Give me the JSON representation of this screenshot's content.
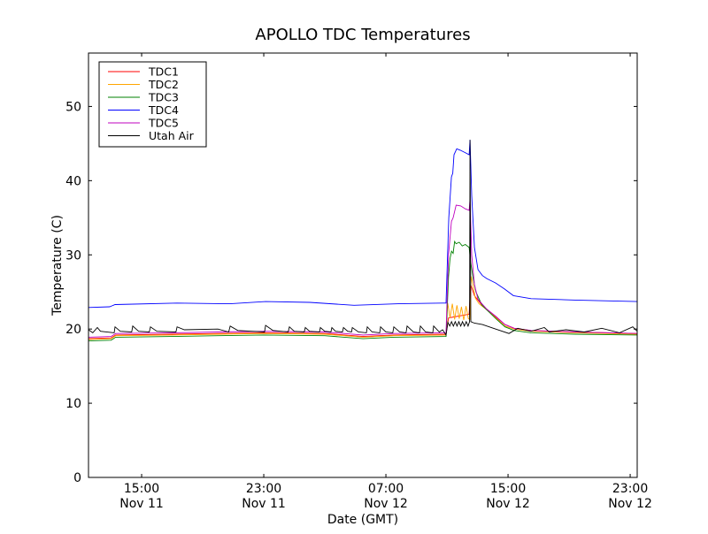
{
  "chart_data": {
    "type": "line",
    "title": "APOLLO TDC Temperatures",
    "xlabel": "Date (GMT)",
    "ylabel": "Temperature (C)",
    "x_units": "hours since Nov 11 00:00 GMT",
    "xlim": [
      11.52,
      47.46
    ],
    "ylim": [
      0,
      57.2
    ],
    "yticks": [
      0,
      10,
      20,
      30,
      40,
      50
    ],
    "xticks": [
      {
        "value": 15,
        "time": "15:00",
        "date": "Nov 11"
      },
      {
        "value": 23,
        "time": "23:00",
        "date": "Nov 11"
      },
      {
        "value": 31,
        "time": "07:00",
        "date": "Nov 12"
      },
      {
        "value": 39,
        "time": "15:00",
        "date": "Nov 12"
      },
      {
        "value": 47,
        "time": "23:00",
        "date": "Nov 12"
      }
    ],
    "legend_position": "top-left",
    "series": [
      {
        "name": "TDC1",
        "color": "#ff0000",
        "points": [
          [
            11.52,
            18.7
          ],
          [
            13.0,
            18.8
          ],
          [
            13.3,
            19.2
          ],
          [
            17,
            19.3
          ],
          [
            20,
            19.4
          ],
          [
            23,
            19.5
          ],
          [
            27,
            19.4
          ],
          [
            29.5,
            19.0
          ],
          [
            31.5,
            19.2
          ],
          [
            34.94,
            19.3
          ],
          [
            35.1,
            21.5
          ],
          [
            36.45,
            22
          ],
          [
            36.55,
            26
          ],
          [
            36.8,
            24.5
          ],
          [
            37.3,
            23.2
          ],
          [
            37.6,
            22.6
          ],
          [
            38.2,
            21.6
          ],
          [
            38.8,
            20.6
          ],
          [
            39.4,
            20.1
          ],
          [
            40.5,
            19.8
          ],
          [
            43.4,
            19.6
          ],
          [
            47.46,
            19.4
          ]
        ]
      },
      {
        "name": "TDC2",
        "color": "#ffa500",
        "points": [
          [
            11.52,
            18.6
          ],
          [
            13.0,
            18.7
          ],
          [
            13.3,
            19.1
          ],
          [
            17,
            19.2
          ],
          [
            20,
            19.3
          ],
          [
            23,
            19.4
          ],
          [
            27,
            19.3
          ],
          [
            29.5,
            18.9
          ],
          [
            31.5,
            19.1
          ],
          [
            34.94,
            19.2
          ],
          [
            35.05,
            23.5
          ],
          [
            35.2,
            21.5
          ],
          [
            35.35,
            23.4
          ],
          [
            35.5,
            21.3
          ],
          [
            35.65,
            23.2
          ],
          [
            35.8,
            21.4
          ],
          [
            35.95,
            23
          ],
          [
            36.1,
            21.2
          ],
          [
            36.25,
            23.1
          ],
          [
            36.4,
            21.4
          ],
          [
            36.5,
            21.3
          ],
          [
            36.58,
            27.1
          ],
          [
            36.7,
            26
          ],
          [
            36.85,
            24.2
          ],
          [
            37.1,
            23.4
          ],
          [
            37.6,
            22.6
          ],
          [
            38.2,
            21.5
          ],
          [
            38.8,
            20.4
          ],
          [
            39.4,
            20.0
          ],
          [
            40.5,
            19.7
          ],
          [
            43.4,
            19.5
          ],
          [
            47.46,
            19.3
          ]
        ]
      },
      {
        "name": "TDC3",
        "color": "#008000",
        "points": [
          [
            11.52,
            18.4
          ],
          [
            13.0,
            18.5
          ],
          [
            13.3,
            18.9
          ],
          [
            17,
            19.0
          ],
          [
            20,
            19.1
          ],
          [
            23,
            19.2
          ],
          [
            27,
            19.1
          ],
          [
            29.5,
            18.7
          ],
          [
            31.5,
            18.9
          ],
          [
            34.94,
            19.0
          ],
          [
            35.1,
            27
          ],
          [
            35.2,
            29.5
          ],
          [
            35.3,
            30.5
          ],
          [
            35.4,
            30.2
          ],
          [
            35.5,
            31.8
          ],
          [
            35.6,
            31.5
          ],
          [
            35.8,
            31.7
          ],
          [
            36.0,
            31.2
          ],
          [
            36.2,
            31.4
          ],
          [
            36.45,
            31
          ],
          [
            36.55,
            29
          ],
          [
            36.7,
            27
          ],
          [
            36.9,
            25
          ],
          [
            37.3,
            23.2
          ],
          [
            37.6,
            22.6
          ],
          [
            38.2,
            21.4
          ],
          [
            38.8,
            20.3
          ],
          [
            39.4,
            19.8
          ],
          [
            40.5,
            19.5
          ],
          [
            43.4,
            19.3
          ],
          [
            47.46,
            19.2
          ]
        ]
      },
      {
        "name": "TDC4",
        "color": "#0000ff",
        "points": [
          [
            11.52,
            22.9
          ],
          [
            12.9,
            23.0
          ],
          [
            13.26,
            23.3
          ],
          [
            17.32,
            23.5
          ],
          [
            20.8,
            23.4
          ],
          [
            23.12,
            23.7
          ],
          [
            26.01,
            23.6
          ],
          [
            28.91,
            23.2
          ],
          [
            31.81,
            23.4
          ],
          [
            34.71,
            23.5
          ],
          [
            34.94,
            23.5
          ],
          [
            35.12,
            35
          ],
          [
            35.29,
            40.5
          ],
          [
            35.38,
            41
          ],
          [
            35.46,
            43.5
          ],
          [
            35.64,
            44.3
          ],
          [
            35.87,
            44.1
          ],
          [
            36.16,
            43.8
          ],
          [
            36.45,
            43.5
          ],
          [
            36.51,
            45.5
          ],
          [
            36.62,
            38
          ],
          [
            36.8,
            31
          ],
          [
            37.03,
            28
          ],
          [
            37.32,
            27.2
          ],
          [
            37.61,
            26.8
          ],
          [
            38.19,
            26.2
          ],
          [
            38.77,
            25.4
          ],
          [
            39.35,
            24.5
          ],
          [
            40.51,
            24.1
          ],
          [
            43.41,
            23.9
          ],
          [
            47.46,
            23.7
          ]
        ]
      },
      {
        "name": "TDC5",
        "color": "#bf00bf",
        "points": [
          [
            11.52,
            18.9
          ],
          [
            13.0,
            19.0
          ],
          [
            13.3,
            19.4
          ],
          [
            17,
            19.5
          ],
          [
            20,
            19.6
          ],
          [
            23,
            19.7
          ],
          [
            27,
            19.6
          ],
          [
            29.5,
            19.2
          ],
          [
            31.5,
            19.4
          ],
          [
            34.94,
            19.5
          ],
          [
            35.1,
            30
          ],
          [
            35.29,
            34.5
          ],
          [
            35.4,
            35
          ],
          [
            35.6,
            36.7
          ],
          [
            35.9,
            36.6
          ],
          [
            36.2,
            36.2
          ],
          [
            36.45,
            36
          ],
          [
            36.51,
            37.5
          ],
          [
            36.62,
            30
          ],
          [
            36.8,
            26
          ],
          [
            37.03,
            24
          ],
          [
            37.6,
            22.7
          ],
          [
            38.2,
            21.7
          ],
          [
            38.8,
            20.6
          ],
          [
            39.4,
            20.1
          ],
          [
            40.5,
            19.8
          ],
          [
            43.4,
            19.6
          ],
          [
            47.46,
            19.4
          ]
        ]
      },
      {
        "name": "Utah Air",
        "color": "#000000",
        "points": [
          [
            11.52,
            19.9
          ],
          [
            11.8,
            19.5
          ],
          [
            12.1,
            20.2
          ],
          [
            12.3,
            19.7
          ],
          [
            13.2,
            19.5
          ],
          [
            13.26,
            20.3
          ],
          [
            13.6,
            19.7
          ],
          [
            14.35,
            19.6
          ],
          [
            14.42,
            20.4
          ],
          [
            14.8,
            19.7
          ],
          [
            15.5,
            19.6
          ],
          [
            15.58,
            20.3
          ],
          [
            16.0,
            19.7
          ],
          [
            17.25,
            19.6
          ],
          [
            17.32,
            20.3
          ],
          [
            17.8,
            19.9
          ],
          [
            20.0,
            20.0
          ],
          [
            20.7,
            19.6
          ],
          [
            20.8,
            20.4
          ],
          [
            21.3,
            19.8
          ],
          [
            23.05,
            19.6
          ],
          [
            23.12,
            20.5
          ],
          [
            23.6,
            19.8
          ],
          [
            24.6,
            19.6
          ],
          [
            24.68,
            20.3
          ],
          [
            25.0,
            19.7
          ],
          [
            25.65,
            19.6
          ],
          [
            25.72,
            20.2
          ],
          [
            26.0,
            19.7
          ],
          [
            26.65,
            19.6
          ],
          [
            26.71,
            20.2
          ],
          [
            27.0,
            19.7
          ],
          [
            27.4,
            19.6
          ],
          [
            27.46,
            20.2
          ],
          [
            27.7,
            19.7
          ],
          [
            28.15,
            19.6
          ],
          [
            28.22,
            20.2
          ],
          [
            28.5,
            19.7
          ],
          [
            28.75,
            19.6
          ],
          [
            28.8,
            20.2
          ],
          [
            29.2,
            19.6
          ],
          [
            29.72,
            19.5
          ],
          [
            29.78,
            20.3
          ],
          [
            30.1,
            19.6
          ],
          [
            30.6,
            19.5
          ],
          [
            30.65,
            20.3
          ],
          [
            31.0,
            19.6
          ],
          [
            31.45,
            19.5
          ],
          [
            31.52,
            20.3
          ],
          [
            31.9,
            19.6
          ],
          [
            32.32,
            19.5
          ],
          [
            32.39,
            20.4
          ],
          [
            32.8,
            19.6
          ],
          [
            33.2,
            19.5
          ],
          [
            33.26,
            20.4
          ],
          [
            33.6,
            19.6
          ],
          [
            34.07,
            19.5
          ],
          [
            34.13,
            20.4
          ],
          [
            34.5,
            19.6
          ],
          [
            34.71,
            19.9
          ],
          [
            34.94,
            19.2
          ],
          [
            35.06,
            20.9
          ],
          [
            35.18,
            20.4
          ],
          [
            35.3,
            21
          ],
          [
            35.42,
            20.4
          ],
          [
            35.54,
            21
          ],
          [
            35.66,
            20.4
          ],
          [
            35.78,
            21
          ],
          [
            35.9,
            20.4
          ],
          [
            36.02,
            21
          ],
          [
            36.14,
            20.4
          ],
          [
            36.26,
            21
          ],
          [
            36.38,
            20.4
          ],
          [
            36.48,
            21
          ],
          [
            36.51,
            45.5
          ],
          [
            36.56,
            21
          ],
          [
            36.8,
            20.8
          ],
          [
            37.32,
            20.6
          ],
          [
            38.19,
            20.0
          ],
          [
            39.06,
            19.4
          ],
          [
            39.64,
            20.1
          ],
          [
            40.51,
            19.7
          ],
          [
            41.38,
            20.2
          ],
          [
            41.7,
            19.6
          ],
          [
            42.8,
            19.9
          ],
          [
            43.99,
            19.6
          ],
          [
            45.14,
            20.1
          ],
          [
            46.3,
            19.5
          ],
          [
            47.17,
            20.3
          ],
          [
            47.46,
            19.7
          ]
        ]
      }
    ]
  }
}
